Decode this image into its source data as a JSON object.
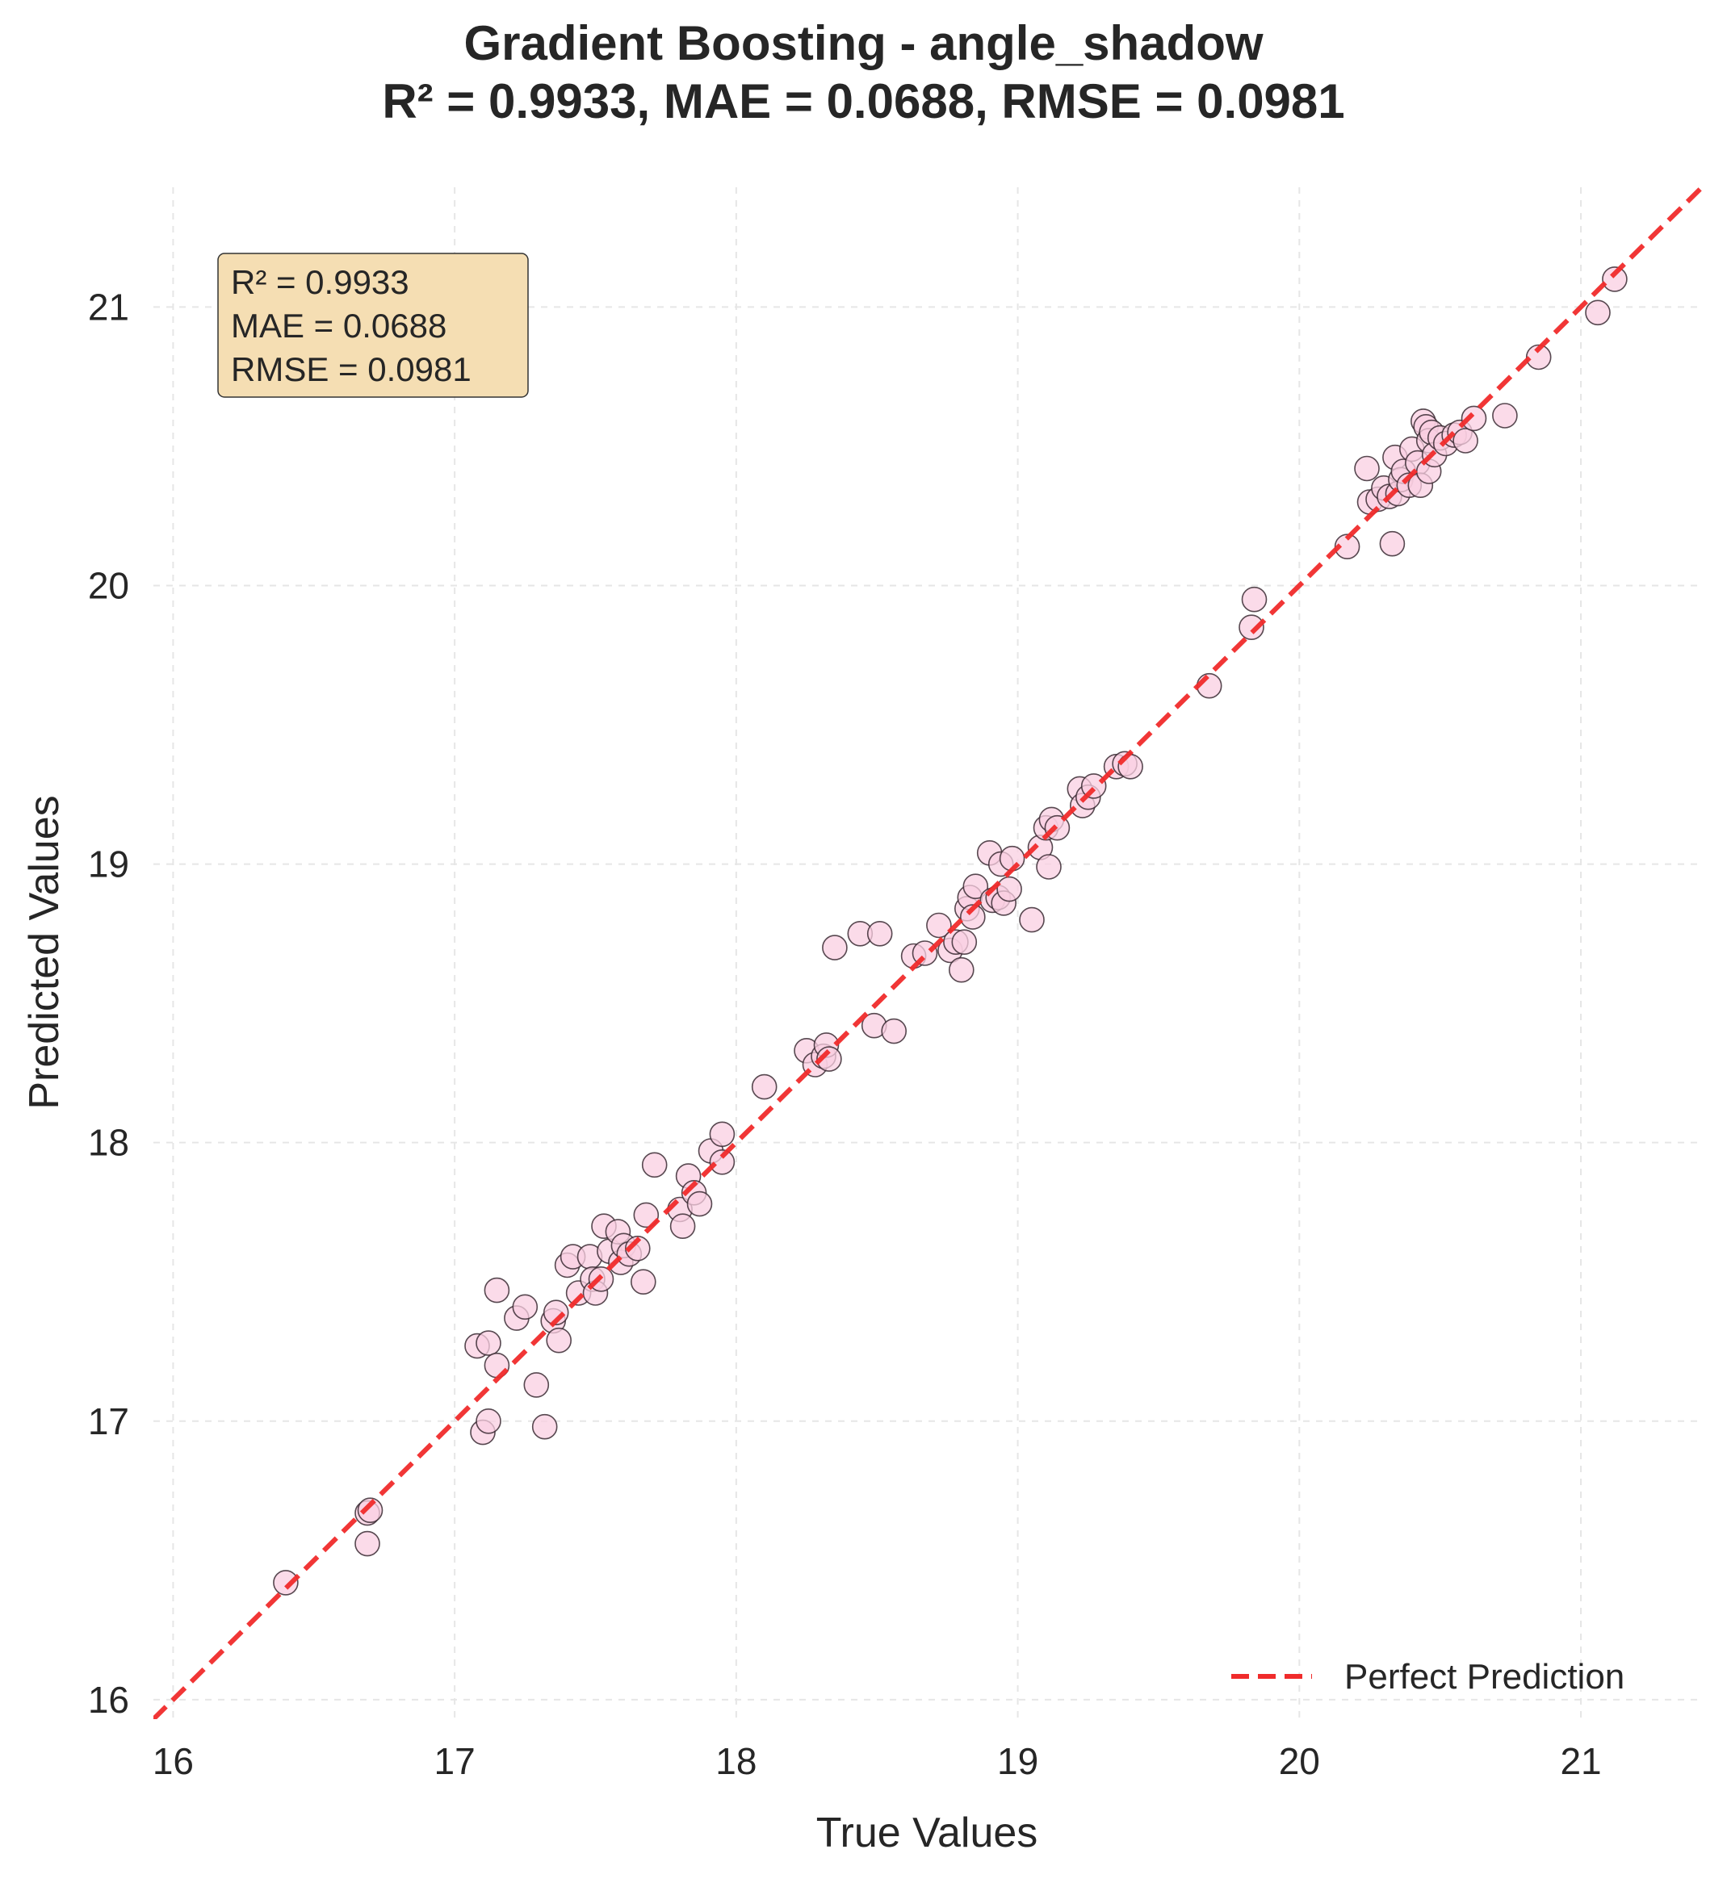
{
  "chart_data": {
    "type": "scatter",
    "title": "Gradient Boosting - angle_shadow",
    "subtitle": "R² = 0.9933, MAE = 0.0688, RMSE = 0.0981",
    "xlabel": "True Values",
    "ylabel": "Predicted Values",
    "xlim": [
      15.93,
      21.43
    ],
    "ylim": [
      15.93,
      21.43
    ],
    "xticks": [
      "16",
      "17",
      "18",
      "19",
      "20",
      "21"
    ],
    "yticks": [
      "16",
      "17",
      "18",
      "19",
      "20",
      "21"
    ],
    "grid": true,
    "legend": {
      "position": "lower-right",
      "entries": [
        "Perfect Prediction"
      ]
    },
    "stats_box": {
      "position": "top-left",
      "lines": [
        "R² = 0.9933",
        "MAE = 0.0688",
        "RMSE = 0.0981"
      ]
    },
    "colors": {
      "point_fill": "#f9cfe2",
      "point_edge": "#3a2a33",
      "reference_line": "#f02b2b",
      "stats_box_fill": "#f5deb3",
      "grid": "#e6e6e6"
    },
    "series": [
      {
        "kind": "points",
        "points": [
          [
            16.4,
            16.42
          ],
          [
            16.69,
            16.56
          ],
          [
            16.69,
            16.67
          ],
          [
            16.7,
            16.68
          ],
          [
            17.08,
            17.27
          ],
          [
            17.1,
            16.96
          ],
          [
            17.12,
            17.0
          ],
          [
            17.12,
            17.28
          ],
          [
            17.15,
            17.47
          ],
          [
            17.15,
            17.2
          ],
          [
            17.22,
            17.37
          ],
          [
            17.25,
            17.41
          ],
          [
            17.29,
            17.13
          ],
          [
            17.32,
            16.98
          ],
          [
            17.35,
            17.36
          ],
          [
            17.36,
            17.39
          ],
          [
            17.37,
            17.29
          ],
          [
            17.4,
            17.56
          ],
          [
            17.42,
            17.59
          ],
          [
            17.44,
            17.46
          ],
          [
            17.48,
            17.59
          ],
          [
            17.49,
            17.51
          ],
          [
            17.5,
            17.46
          ],
          [
            17.52,
            17.51
          ],
          [
            17.53,
            17.7
          ],
          [
            17.55,
            17.61
          ],
          [
            17.58,
            17.68
          ],
          [
            17.59,
            17.57
          ],
          [
            17.6,
            17.63
          ],
          [
            17.62,
            17.6
          ],
          [
            17.65,
            17.62
          ],
          [
            17.67,
            17.5
          ],
          [
            17.68,
            17.74
          ],
          [
            17.71,
            17.92
          ],
          [
            17.8,
            17.76
          ],
          [
            17.81,
            17.7
          ],
          [
            17.83,
            17.88
          ],
          [
            17.85,
            17.82
          ],
          [
            17.87,
            17.78
          ],
          [
            17.91,
            17.97
          ],
          [
            17.95,
            18.03
          ],
          [
            17.95,
            17.93
          ],
          [
            18.1,
            18.2
          ],
          [
            18.25,
            18.33
          ],
          [
            18.28,
            18.28
          ],
          [
            18.31,
            18.31
          ],
          [
            18.32,
            18.35
          ],
          [
            18.33,
            18.3
          ],
          [
            18.35,
            18.7
          ],
          [
            18.44,
            18.75
          ],
          [
            18.49,
            18.42
          ],
          [
            18.51,
            18.75
          ],
          [
            18.56,
            18.4
          ],
          [
            18.63,
            18.67
          ],
          [
            18.67,
            18.68
          ],
          [
            18.72,
            18.78
          ],
          [
            18.76,
            18.69
          ],
          [
            18.78,
            18.72
          ],
          [
            18.8,
            18.62
          ],
          [
            18.81,
            18.72
          ],
          [
            18.82,
            18.84
          ],
          [
            18.83,
            18.88
          ],
          [
            18.84,
            18.81
          ],
          [
            18.85,
            18.92
          ],
          [
            18.9,
            19.04
          ],
          [
            18.91,
            18.87
          ],
          [
            18.93,
            18.88
          ],
          [
            18.94,
            19.0
          ],
          [
            18.95,
            18.86
          ],
          [
            18.97,
            18.91
          ],
          [
            18.98,
            19.02
          ],
          [
            19.05,
            18.8
          ],
          [
            19.08,
            19.06
          ],
          [
            19.1,
            19.13
          ],
          [
            19.11,
            18.99
          ],
          [
            19.12,
            19.16
          ],
          [
            19.14,
            19.13
          ],
          [
            19.22,
            19.27
          ],
          [
            19.23,
            19.21
          ],
          [
            19.25,
            19.24
          ],
          [
            19.27,
            19.28
          ],
          [
            19.35,
            19.35
          ],
          [
            19.38,
            19.36
          ],
          [
            19.4,
            19.35
          ],
          [
            19.68,
            19.64
          ],
          [
            19.83,
            19.85
          ],
          [
            19.84,
            19.95
          ],
          [
            20.17,
            20.14
          ],
          [
            20.24,
            20.42
          ],
          [
            20.25,
            20.3
          ],
          [
            20.28,
            20.31
          ],
          [
            20.3,
            20.35
          ],
          [
            20.32,
            20.32
          ],
          [
            20.33,
            20.15
          ],
          [
            20.34,
            20.46
          ],
          [
            20.35,
            20.33
          ],
          [
            20.36,
            20.38
          ],
          [
            20.37,
            20.41
          ],
          [
            20.39,
            20.36
          ],
          [
            20.4,
            20.49
          ],
          [
            20.42,
            20.44
          ],
          [
            20.43,
            20.36
          ],
          [
            20.44,
            20.59
          ],
          [
            20.45,
            20.57
          ],
          [
            20.46,
            20.52
          ],
          [
            20.46,
            20.41
          ],
          [
            20.47,
            20.55
          ],
          [
            20.48,
            20.47
          ],
          [
            20.5,
            20.53
          ],
          [
            20.52,
            20.51
          ],
          [
            20.55,
            20.54
          ],
          [
            20.57,
            20.55
          ],
          [
            20.59,
            20.52
          ],
          [
            20.62,
            20.6
          ],
          [
            20.73,
            20.61
          ],
          [
            20.85,
            20.82
          ],
          [
            21.06,
            20.98
          ],
          [
            21.12,
            21.1
          ]
        ]
      },
      {
        "kind": "reference-line",
        "name": "Perfect Prediction",
        "from": [
          15.93,
          15.93
        ],
        "to": [
          21.43,
          21.43
        ]
      }
    ]
  }
}
